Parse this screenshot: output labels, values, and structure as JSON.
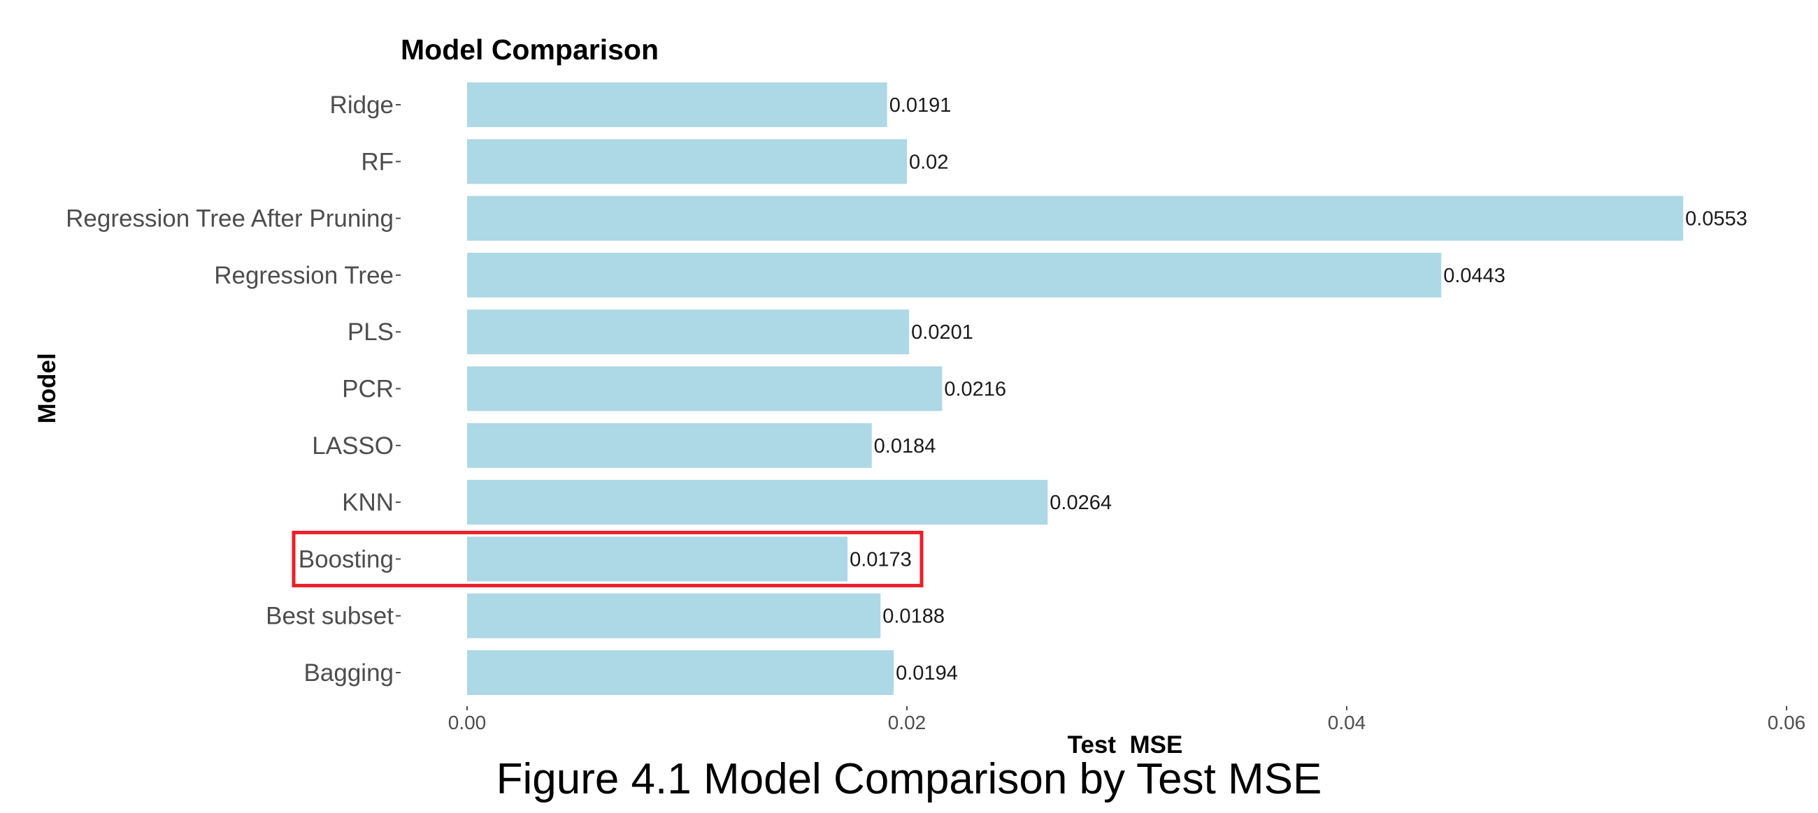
{
  "caption": "Figure 4.1 Model Comparison by Test MSE",
  "colors": {
    "bar": "#add8e6",
    "highlight": "#e8202a",
    "tick": "#4d4d4d"
  },
  "chart_data": {
    "type": "bar",
    "orientation": "horizontal",
    "title": "Model Comparison",
    "xlabel": "Test_MSE",
    "ylabel": "Model",
    "xlim": [
      0,
      0.06
    ],
    "x_ticks": [
      {
        "value": 0,
        "label": "0.00"
      },
      {
        "value": 0.02,
        "label": "0.02"
      },
      {
        "value": 0.04,
        "label": "0.04"
      },
      {
        "value": 0.06,
        "label": "0.06"
      }
    ],
    "categories": [
      "Ridge",
      "RF",
      "Regression Tree After Pruning",
      "Regression Tree",
      "PLS",
      "PCR",
      "LASSO",
      "KNN",
      "Boosting",
      "Best subset",
      "Bagging"
    ],
    "values": [
      0.0191,
      0.02,
      0.0553,
      0.0443,
      0.0201,
      0.0216,
      0.0184,
      0.0264,
      0.0173,
      0.0188,
      0.0194
    ],
    "value_labels": [
      "0.0191",
      "0.02",
      "0.0553",
      "0.0443",
      "0.0201",
      "0.0216",
      "0.0184",
      "0.0264",
      "0.0173",
      "0.0188",
      "0.0194"
    ],
    "highlighted": "Boosting",
    "grid": false,
    "legend": "none"
  }
}
